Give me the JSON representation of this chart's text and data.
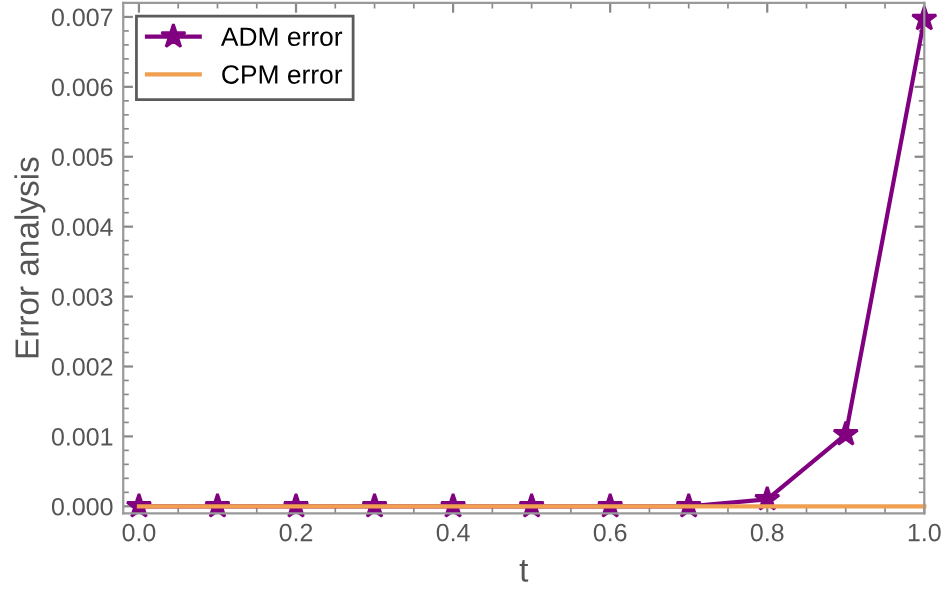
{
  "chart_data": {
    "type": "line",
    "xlabel": "t",
    "ylabel": "Error analysis",
    "x": [
      0,
      0.1,
      0.2,
      0.3,
      0.4,
      0.5,
      0.6,
      0.7,
      0.8,
      0.9,
      1.0
    ],
    "series": [
      {
        "name": "ADM error",
        "color": "#800080",
        "marker": "star",
        "values": [
          0,
          0,
          0,
          0,
          0,
          0,
          0,
          0,
          0.0001,
          0.00103,
          0.00697
        ]
      },
      {
        "name": "CPM error",
        "color": "#f0a050",
        "marker": "none",
        "values": [
          0,
          0,
          0,
          0,
          0,
          0,
          0,
          0,
          0,
          0,
          0
        ]
      }
    ],
    "xlim": [
      -0.02,
      1.0
    ],
    "ylim": [
      -0.0001,
      0.0072
    ],
    "xticks": [
      {
        "value": 0,
        "label": "0.0"
      },
      {
        "value": 0.2,
        "label": "0.2"
      },
      {
        "value": 0.4,
        "label": "0.4"
      },
      {
        "value": 0.6,
        "label": "0.6"
      },
      {
        "value": 0.8,
        "label": "0.8"
      },
      {
        "value": 1.0,
        "label": "1.0"
      }
    ],
    "yticks": [
      {
        "value": 0,
        "label": "0.000"
      },
      {
        "value": 0.001,
        "label": "0.001"
      },
      {
        "value": 0.002,
        "label": "0.002"
      },
      {
        "value": 0.003,
        "label": "0.003"
      },
      {
        "value": 0.004,
        "label": "0.004"
      },
      {
        "value": 0.005,
        "label": "0.005"
      },
      {
        "value": 0.006,
        "label": "0.006"
      },
      {
        "value": 0.007,
        "label": "0.007"
      }
    ],
    "legend": "top left",
    "grid": false
  }
}
